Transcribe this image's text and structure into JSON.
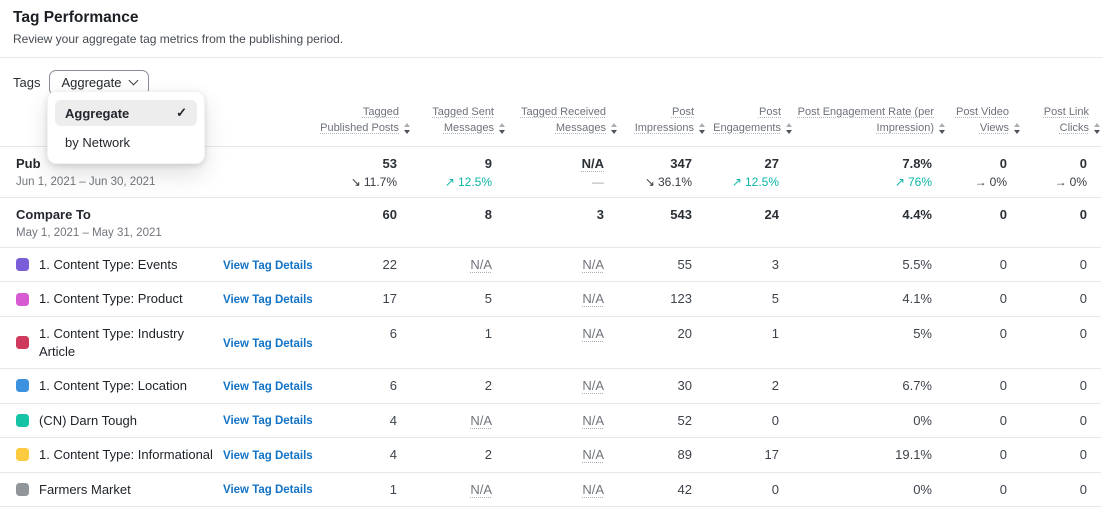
{
  "page": {
    "title": "Tag Performance",
    "subtitle": "Review your aggregate tag metrics from the publishing period."
  },
  "filter": {
    "label": "Tags",
    "selected_value": "Aggregate",
    "check_glyph": "✓",
    "menu_items": [
      {
        "label": "Aggregate",
        "selected": true
      },
      {
        "label": "by Network",
        "selected": false
      }
    ]
  },
  "colors": {
    "teal": "#0ab5a7",
    "link_blue": "#1273c6",
    "delta_dark": "#363b42"
  },
  "table": {
    "columns": [
      {
        "label": "Tagged Published Posts"
      },
      {
        "label": "Tagged Sent Messages"
      },
      {
        "label": "Tagged Received Messages"
      },
      {
        "label": "Post Impressions"
      },
      {
        "label": "Post Engagements"
      },
      {
        "label": "Post Engagement Rate (per Impression)"
      },
      {
        "label": "Post Video Views"
      },
      {
        "label": "Post Link Clicks"
      }
    ],
    "summary_rows": [
      {
        "name": "Pub",
        "date_range": "Jun 1, 2021 – Jun 30, 2021",
        "cells": [
          {
            "value": "53",
            "delta": {
              "glyph": "↘",
              "text": "11.7%",
              "tone": "down"
            }
          },
          {
            "value": "9",
            "delta": {
              "glyph": "↗",
              "text": "12.5%",
              "tone": "up"
            }
          },
          {
            "value": "N/A",
            "na": true,
            "delta": {
              "glyph": "",
              "text": "—",
              "tone": "muted"
            }
          },
          {
            "value": "347",
            "delta": {
              "glyph": "↘",
              "text": "36.1%",
              "tone": "down"
            }
          },
          {
            "value": "27",
            "delta": {
              "glyph": "↗",
              "text": "12.5%",
              "tone": "up"
            }
          },
          {
            "value": "7.8%",
            "delta": {
              "glyph": "↗",
              "text": "76%",
              "tone": "up"
            }
          },
          {
            "value": "0",
            "delta": {
              "glyph": "→",
              "text": "0%",
              "tone": "flat"
            }
          },
          {
            "value": "0",
            "delta": {
              "glyph": "→",
              "text": "0%",
              "tone": "flat"
            }
          }
        ]
      },
      {
        "name": "Compare To",
        "date_range": "May 1, 2021 – May 31, 2021",
        "cells": [
          {
            "value": "60"
          },
          {
            "value": "8"
          },
          {
            "value": "3"
          },
          {
            "value": "543"
          },
          {
            "value": "24"
          },
          {
            "value": "4.4%"
          },
          {
            "value": "0"
          },
          {
            "value": "0"
          }
        ]
      }
    ],
    "link_label": "View Tag Details",
    "tag_rows": [
      {
        "color": "#7a5dd8",
        "name": "1. Content Type: Events",
        "values": [
          "22",
          "N/A",
          "N/A",
          "55",
          "3",
          "5.5%",
          "0",
          "0"
        ]
      },
      {
        "color": "#d65ad1",
        "name": "1. Content Type: Product",
        "values": [
          "17",
          "5",
          "N/A",
          "123",
          "5",
          "4.1%",
          "0",
          "0"
        ]
      },
      {
        "color": "#cf3a5c",
        "name": "1. Content Type: Industry Article",
        "values": [
          "6",
          "1",
          "N/A",
          "20",
          "1",
          "5%",
          "0",
          "0"
        ]
      },
      {
        "color": "#3d92e0",
        "name": "1. Content Type: Location",
        "values": [
          "6",
          "2",
          "N/A",
          "30",
          "2",
          "6.7%",
          "0",
          "0"
        ]
      },
      {
        "color": "#17c3a5",
        "name": "(CN) Darn Tough",
        "values": [
          "4",
          "N/A",
          "N/A",
          "52",
          "0",
          "0%",
          "0",
          "0"
        ]
      },
      {
        "color": "#fdcb3f",
        "name": "1. Content Type: Informational",
        "values": [
          "4",
          "2",
          "N/A",
          "89",
          "17",
          "19.1%",
          "0",
          "0"
        ]
      },
      {
        "color": "#909699",
        "name": "Farmers Market",
        "values": [
          "1",
          "N/A",
          "N/A",
          "42",
          "0",
          "0%",
          "0",
          "0"
        ]
      }
    ]
  }
}
